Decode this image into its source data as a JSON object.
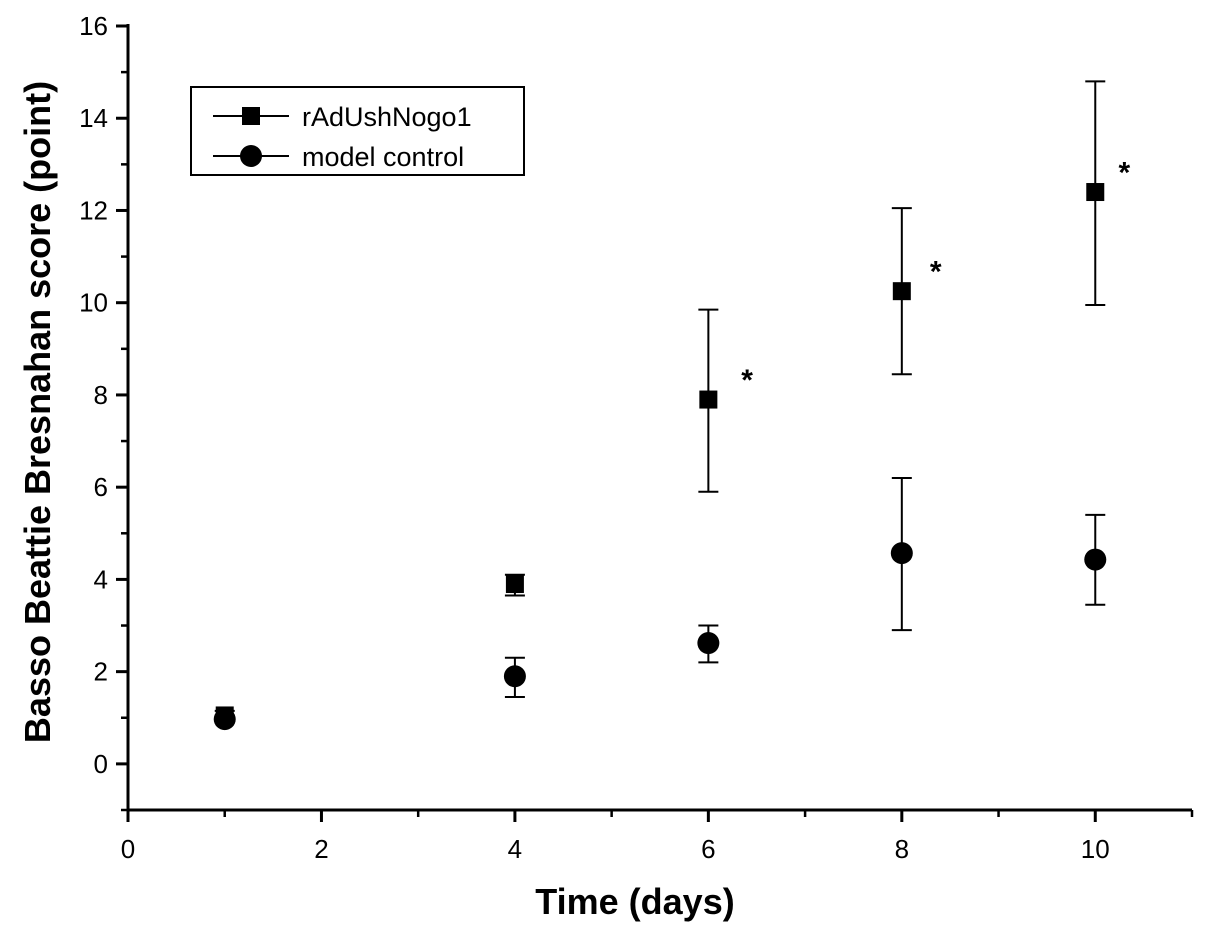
{
  "chart_data": {
    "type": "scatter",
    "xlabel": "Time (days)",
    "ylabel": "Basso Beattie Bresnahan score (point)",
    "xlim": [
      0,
      11
    ],
    "ylim": [
      -1,
      16
    ],
    "x_ticks": [
      0,
      2,
      4,
      6,
      8,
      10
    ],
    "y_ticks": [
      0,
      2,
      4,
      6,
      8,
      10,
      12,
      14,
      16
    ],
    "grid": false,
    "legend_position": "top-left",
    "series": [
      {
        "name": "rAdUshNogo1",
        "marker": "square",
        "color": "#000000",
        "points": [
          {
            "x": 1,
            "y": 1.05,
            "err_low": 0.95,
            "err_high": 1.15
          },
          {
            "x": 4,
            "y": 3.9,
            "err_low": 3.65,
            "err_high": 4.1
          },
          {
            "x": 6,
            "y": 7.9,
            "err_low": 5.9,
            "err_high": 9.85
          },
          {
            "x": 8,
            "y": 10.25,
            "err_low": 8.45,
            "err_high": 12.05
          },
          {
            "x": 10,
            "y": 12.4,
            "err_low": 9.95,
            "err_high": 14.8
          }
        ]
      },
      {
        "name": "model control",
        "marker": "circle",
        "color": "#000000",
        "points": [
          {
            "x": 1,
            "y": 0.97,
            "err_low": 0.9,
            "err_high": 1.05
          },
          {
            "x": 4,
            "y": 1.9,
            "err_low": 1.45,
            "err_high": 2.3
          },
          {
            "x": 6,
            "y": 2.62,
            "err_low": 2.2,
            "err_high": 3.0
          },
          {
            "x": 8,
            "y": 4.57,
            "err_low": 2.9,
            "err_high": 6.2
          },
          {
            "x": 10,
            "y": 4.43,
            "err_low": 3.45,
            "err_high": 5.4
          }
        ]
      }
    ],
    "annotations": [
      {
        "text": "*",
        "x": 6.4,
        "y": 8.35
      },
      {
        "text": "*",
        "x": 8.35,
        "y": 10.7
      },
      {
        "text": "*",
        "x": 10.3,
        "y": 12.85
      }
    ]
  }
}
